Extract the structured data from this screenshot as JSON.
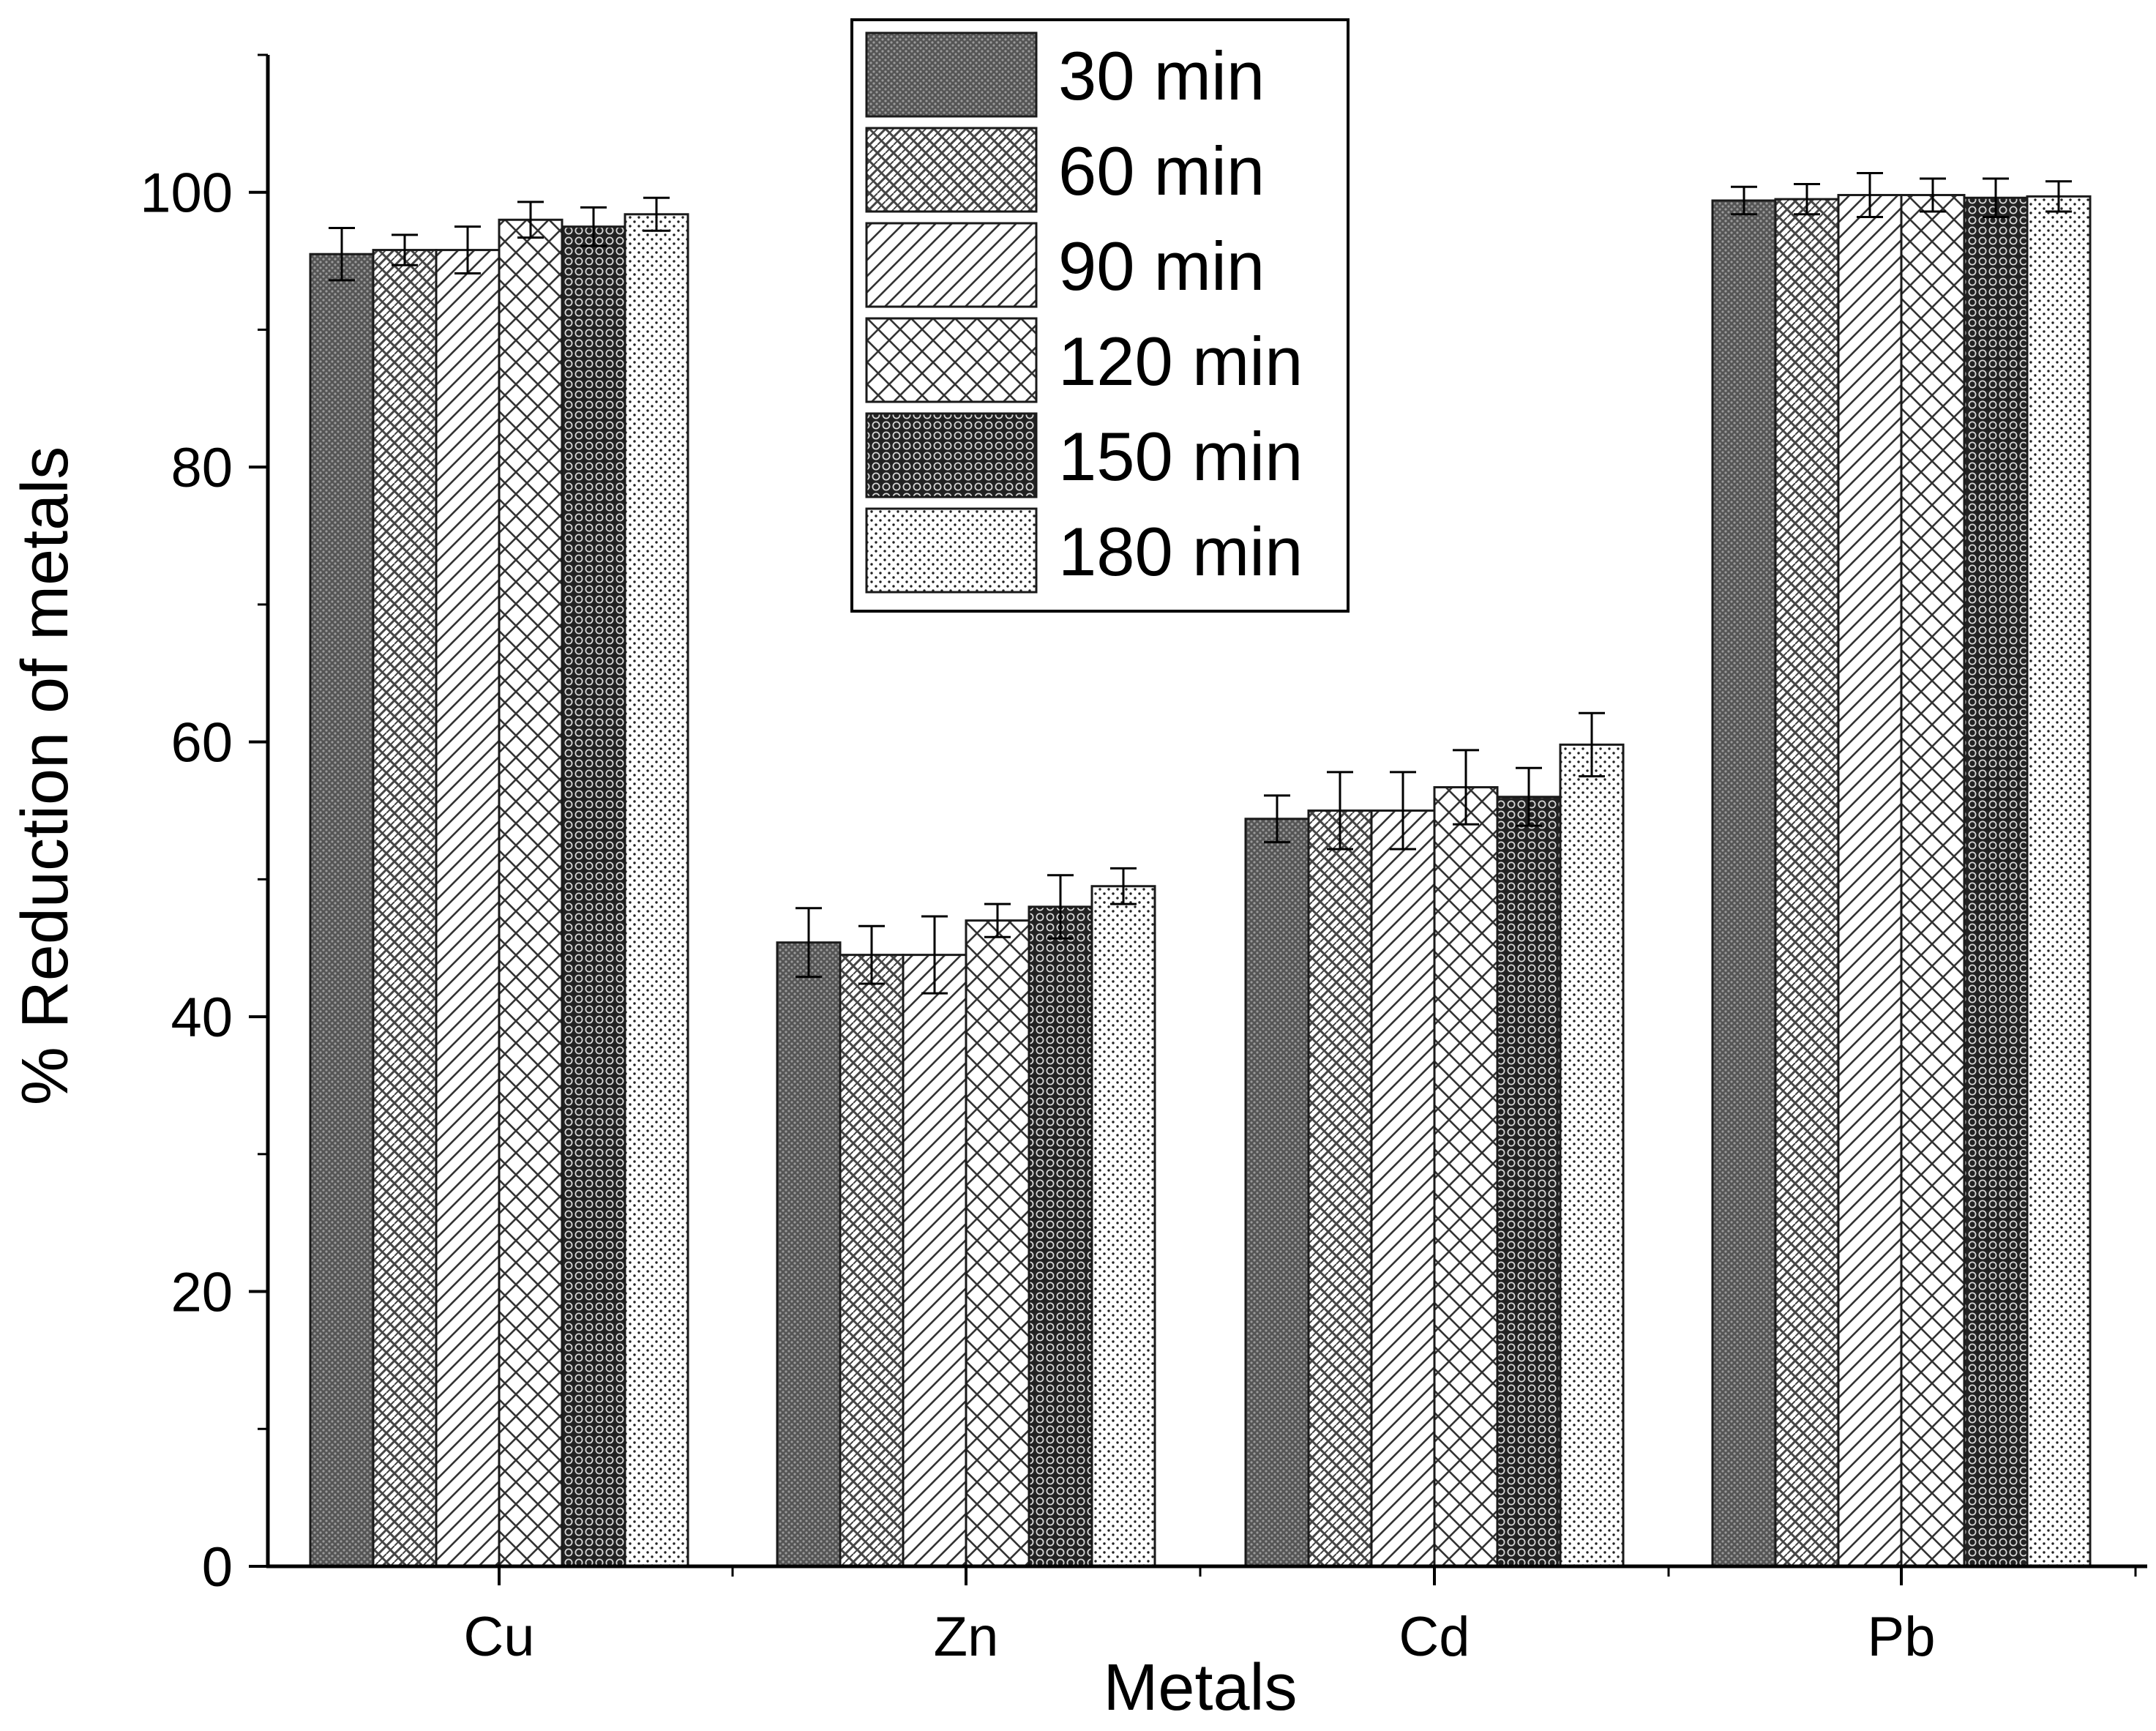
{
  "chart_data": {
    "type": "bar",
    "title": "",
    "xlabel": "Metals",
    "ylabel": "% Reduction of metals",
    "categories": [
      "Cu",
      "Zn",
      "Cd",
      "Pb"
    ],
    "ylim": [
      0,
      110
    ],
    "yticks": [
      0,
      20,
      40,
      60,
      80,
      100
    ],
    "grid": false,
    "legend_position": "top-center",
    "series": [
      {
        "name": "30 min",
        "pattern": "dense-dots",
        "values": [
          95.5,
          45.4,
          54.4,
          99.4
        ],
        "errors": [
          1.9,
          2.5,
          1.7,
          1.0
        ]
      },
      {
        "name": "60 min",
        "pattern": "crosshatch",
        "values": [
          95.8,
          44.5,
          55.0,
          99.5
        ],
        "errors": [
          1.1,
          2.1,
          2.8,
          1.1
        ]
      },
      {
        "name": "90 min",
        "pattern": "diagonal",
        "values": [
          95.8,
          44.5,
          55.0,
          99.8
        ],
        "errors": [
          1.7,
          2.8,
          2.8,
          1.6
        ]
      },
      {
        "name": "120 min",
        "pattern": "diamond",
        "values": [
          98.0,
          47.0,
          56.7,
          99.8
        ],
        "errors": [
          1.3,
          1.2,
          2.7,
          1.2
        ]
      },
      {
        "name": "150 min",
        "pattern": "circles",
        "values": [
          97.5,
          48.0,
          56.0,
          99.6
        ],
        "errors": [
          1.4,
          2.3,
          2.1,
          1.4
        ]
      },
      {
        "name": "180 min",
        "pattern": "sparse-dots",
        "values": [
          98.4,
          49.5,
          59.8,
          99.7
        ],
        "errors": [
          1.2,
          1.3,
          2.3,
          1.1
        ]
      }
    ],
    "colors": {
      "axis": "#000000",
      "bar_stroke": "#1a1a1a",
      "background": "#ffffff"
    }
  }
}
